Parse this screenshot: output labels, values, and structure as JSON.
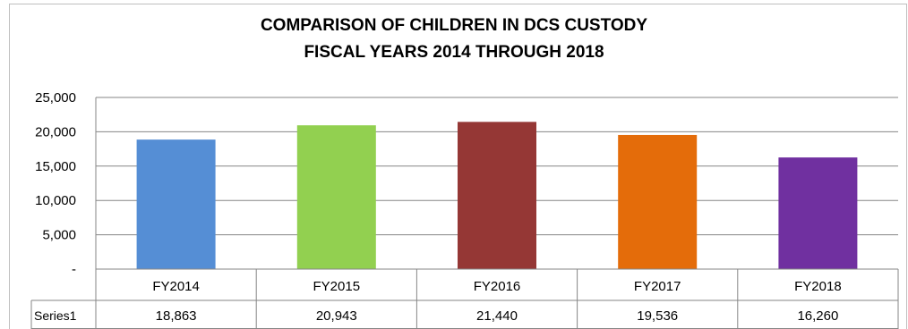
{
  "chart_data": {
    "type": "bar",
    "title_line1": "COMPARISON OF CHILDREN IN DCS CUSTODY",
    "title_line2": "FISCAL YEARS 2014 THROUGH 2018",
    "categories": [
      "FY2014",
      "FY2015",
      "FY2016",
      "FY2017",
      "FY2018"
    ],
    "series": [
      {
        "name": "Series1",
        "values": [
          18863,
          20943,
          21440,
          19536,
          16260
        ]
      }
    ],
    "value_labels": [
      "18,863",
      "20,943",
      "21,440",
      "19,536",
      "16,260"
    ],
    "bar_colors": [
      "#558ed5",
      "#92d050",
      "#953735",
      "#e46c0a",
      "#7030a0"
    ],
    "ylim": [
      0,
      25000
    ],
    "yticks": [
      0,
      5000,
      10000,
      15000,
      20000,
      25000
    ],
    "ytick_labels": [
      "-",
      "5,000",
      "10,000",
      "15,000",
      "20,000",
      "25,000"
    ],
    "grid": true,
    "data_table": true
  }
}
